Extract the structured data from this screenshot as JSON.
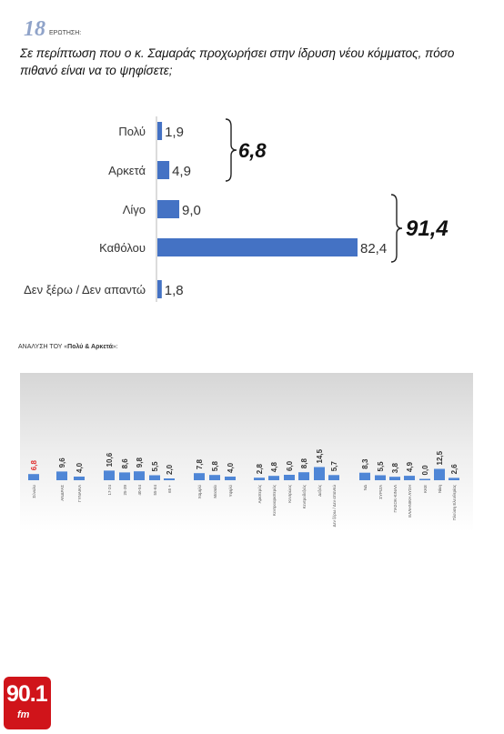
{
  "header": {
    "number": "18",
    "label": "ΕΡΩΤΗΣΗ:",
    "question": "Σε περίπτωση που ο κ. Σαμαράς προχωρήσει στην ίδρυση νέου κόμματος, πόσο πιθανό είναι να το ψηφίσετε;"
  },
  "breakdown": {
    "title_prefix": "ΑΝΑΛΥΣΗ ΤΟΥ «",
    "title_bold": "Πολύ & Αρκετά",
    "title_suffix": "»:"
  },
  "logo": {
    "number": "90.1",
    "suffix": "fm",
    "color": "#d0141a"
  },
  "chart_data": [
    {
      "type": "bar",
      "orientation": "horizontal",
      "categories": [
        "Πολύ",
        "Αρκετά",
        "Λίγο",
        "Καθόλου",
        "Δεν ξέρω / Δεν απαντώ"
      ],
      "values": [
        1.9,
        4.9,
        9.0,
        82.4,
        1.8
      ],
      "value_labels": [
        "1,9",
        "4,9",
        "9,0",
        "82,4",
        "1,8"
      ],
      "groups": [
        {
          "label": "6,8",
          "members": [
            0,
            1
          ]
        },
        {
          "label": "91,4",
          "members": [
            2,
            3
          ]
        }
      ],
      "color": "#4472c4",
      "xlim": [
        0,
        82.4
      ]
    },
    {
      "type": "bar",
      "categories": [
        "Σύνολο",
        "ΑΝΔΡΑΣ",
        "ΓΥΝΑΙΚΑ",
        "17-24",
        "25-39",
        "40-54",
        "55-64",
        "65 +",
        "Χαμηλό",
        "Μεσαίο",
        "Υψηλό",
        "Αριστερός",
        "Κεντροαριστερός",
        "Κεντρώος",
        "Κεντροδεξιός",
        "Δεξιός",
        "Δεν ξέρω / Δεν απαντώ",
        "ΝΔ",
        "ΣΥΡΙΖΑ",
        "ΠΑΣΟΚ-ΚΙΝΑΛ",
        "ΕΛΛΗΝΙΚΗ ΛΥΣΗ",
        "ΚΚΕ",
        "Νίκη",
        "Πλεύση Ελευθερίας"
      ],
      "values": [
        6.8,
        9.6,
        4.0,
        10.6,
        8.6,
        9.8,
        5.5,
        2.0,
        7.8,
        5.8,
        4.0,
        2.8,
        4.8,
        6.0,
        8.8,
        14.5,
        5.7,
        8.3,
        5.5,
        3.8,
        4.9,
        0.0,
        12.5,
        2.6
      ],
      "value_labels": [
        "6,8",
        "9,6",
        "4,0",
        "10,6",
        "8,6",
        "9,8",
        "5,5",
        "2,0",
        "7,8",
        "5,8",
        "4,0",
        "2,8",
        "4,8",
        "6,0",
        "8,8",
        "14,5",
        "5,7",
        "8,3",
        "5,5",
        "3,8",
        "4,9",
        "0,0",
        "12,5",
        "2,6"
      ],
      "highlight_index": 0,
      "highlight_color": "#e03030",
      "color": "#4f86d6",
      "ylim": [
        0,
        14.5
      ]
    }
  ]
}
